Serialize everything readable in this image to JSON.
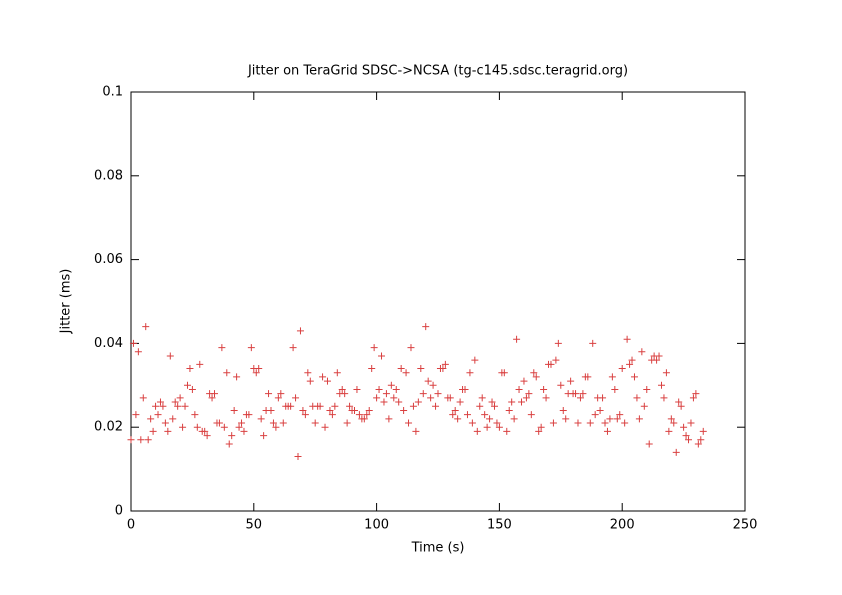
{
  "chart_data": {
    "type": "scatter",
    "title": "Jitter on TeraGrid SDSC->NCSA (tg-c145.sdsc.teragrid.org)",
    "x_label": "Time (s)",
    "y_label": "Jitter (ms)",
    "xlim": [
      0,
      250
    ],
    "ylim": [
      0,
      0.1
    ],
    "xticks": [
      0,
      50,
      100,
      150,
      200,
      250
    ],
    "yticks": [
      0,
      0.02,
      0.04,
      0.06,
      0.08,
      0.1
    ],
    "color": "#d94040",
    "marker": "+",
    "x": [
      0,
      1,
      2,
      3,
      4,
      5,
      6,
      7,
      8,
      9,
      10,
      11,
      12,
      13,
      14,
      15,
      16,
      17,
      18,
      19,
      20,
      21,
      22,
      23,
      24,
      25,
      26,
      27,
      28,
      29,
      30,
      31,
      32,
      33,
      34,
      35,
      36,
      37,
      38,
      39,
      40,
      41,
      42,
      43,
      44,
      45,
      46,
      47,
      48,
      49,
      50,
      51,
      52,
      53,
      54,
      55,
      56,
      57,
      58,
      59,
      60,
      61,
      62,
      63,
      64,
      65,
      66,
      67,
      68,
      69,
      70,
      71,
      72,
      73,
      74,
      75,
      76,
      77,
      78,
      79,
      80,
      81,
      82,
      83,
      84,
      85,
      86,
      87,
      88,
      89,
      90,
      91,
      92,
      93,
      94,
      95,
      96,
      97,
      98,
      99,
      100,
      101,
      102,
      103,
      104,
      105,
      106,
      107,
      108,
      109,
      110,
      111,
      112,
      113,
      114,
      115,
      116,
      117,
      118,
      119,
      120,
      121,
      122,
      123,
      124,
      125,
      126,
      127,
      128,
      129,
      130,
      131,
      132,
      133,
      134,
      135,
      136,
      137,
      138,
      139,
      140,
      141,
      142,
      143,
      144,
      145,
      146,
      147,
      148,
      149,
      150,
      151,
      152,
      153,
      154,
      155,
      156,
      157,
      158,
      159,
      160,
      161,
      162,
      163,
      164,
      165,
      166,
      167,
      168,
      169,
      170,
      171,
      172,
      173,
      174,
      175,
      176,
      177,
      178,
      179,
      180,
      181,
      182,
      183,
      184,
      185,
      186,
      187,
      188,
      189,
      190,
      191,
      192,
      193,
      194,
      195,
      196,
      197,
      198,
      199,
      200,
      201,
      202,
      203,
      204,
      205,
      206,
      207,
      208,
      209,
      210,
      211,
      212,
      213,
      214,
      215,
      216,
      217,
      218,
      219,
      220,
      221,
      222,
      223,
      224,
      225,
      226,
      227,
      228,
      229,
      230,
      231,
      232,
      233
    ],
    "values": [
      0.017,
      0.04,
      0.023,
      0.038,
      0.017,
      0.027,
      0.044,
      0.017,
      0.022,
      0.019,
      0.025,
      0.023,
      0.026,
      0.025,
      0.021,
      0.019,
      0.037,
      0.022,
      0.026,
      0.025,
      0.027,
      0.02,
      0.025,
      0.03,
      0.034,
      0.029,
      0.023,
      0.02,
      0.035,
      0.019,
      0.019,
      0.018,
      0.028,
      0.027,
      0.028,
      0.021,
      0.021,
      0.039,
      0.02,
      0.033,
      0.016,
      0.018,
      0.024,
      0.032,
      0.02,
      0.021,
      0.019,
      0.023,
      0.023,
      0.039,
      0.034,
      0.033,
      0.034,
      0.022,
      0.018,
      0.024,
      0.028,
      0.024,
      0.021,
      0.02,
      0.027,
      0.028,
      0.021,
      0.025,
      0.025,
      0.025,
      0.039,
      0.027,
      0.013,
      0.043,
      0.024,
      0.023,
      0.033,
      0.031,
      0.025,
      0.021,
      0.025,
      0.025,
      0.032,
      0.02,
      0.031,
      0.024,
      0.023,
      0.025,
      0.033,
      0.028,
      0.029,
      0.028,
      0.021,
      0.025,
      0.024,
      0.024,
      0.029,
      0.023,
      0.022,
      0.022,
      0.023,
      0.024,
      0.034,
      0.039,
      0.027,
      0.029,
      0.037,
      0.026,
      0.028,
      0.022,
      0.03,
      0.027,
      0.029,
      0.026,
      0.034,
      0.024,
      0.033,
      0.021,
      0.039,
      0.025,
      0.019,
      0.026,
      0.034,
      0.028,
      0.044,
      0.031,
      0.027,
      0.03,
      0.025,
      0.028,
      0.034,
      0.034,
      0.035,
      0.027,
      0.027,
      0.023,
      0.024,
      0.022,
      0.026,
      0.029,
      0.029,
      0.023,
      0.033,
      0.021,
      0.036,
      0.019,
      0.025,
      0.027,
      0.023,
      0.02,
      0.022,
      0.026,
      0.025,
      0.021,
      0.02,
      0.033,
      0.033,
      0.019,
      0.024,
      0.026,
      0.022,
      0.041,
      0.029,
      0.026,
      0.031,
      0.027,
      0.028,
      0.023,
      0.033,
      0.032,
      0.019,
      0.02,
      0.029,
      0.027,
      0.035,
      0.035,
      0.021,
      0.036,
      0.04,
      0.03,
      0.024,
      0.022,
      0.028,
      0.031,
      0.028,
      0.028,
      0.021,
      0.027,
      0.028,
      0.032,
      0.032,
      0.021,
      0.04,
      0.023,
      0.027,
      0.024,
      0.027,
      0.021,
      0.019,
      0.022,
      0.032,
      0.029,
      0.022,
      0.023,
      0.034,
      0.021,
      0.041,
      0.035,
      0.036,
      0.032,
      0.027,
      0.022,
      0.038,
      0.025,
      0.029,
      0.016,
      0.036,
      0.037,
      0.036,
      0.037,
      0.03,
      0.027,
      0.033,
      0.019,
      0.022,
      0.021,
      0.014,
      0.026,
      0.025,
      0.02,
      0.018,
      0.017,
      0.021,
      0.027,
      0.028,
      0.016,
      0.017,
      0.019
    ]
  }
}
